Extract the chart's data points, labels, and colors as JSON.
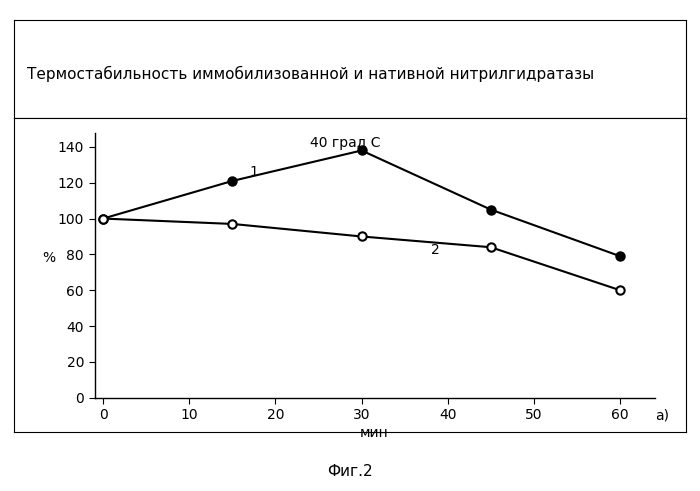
{
  "title": "Термостабильность иммобилизованной и нативной нитрилгидратазы",
  "xlabel": "мин",
  "ylabel": "% ",
  "annotation_40": "40 град С",
  "label_a": "а)",
  "fig_label": "Фиг.2",
  "series1": {
    "x": [
      0,
      15,
      30,
      45,
      60
    ],
    "y": [
      100,
      121,
      138,
      105,
      79
    ],
    "label": "1",
    "marker_fill": "black",
    "line_color": "black"
  },
  "series2": {
    "x": [
      0,
      15,
      30,
      45,
      60
    ],
    "y": [
      100,
      97,
      90,
      84,
      60
    ],
    "label": "2",
    "marker_fill": "white",
    "line_color": "black"
  },
  "ylim": [
    0,
    148
  ],
  "xlim": [
    -1,
    64
  ],
  "yticks": [
    0,
    20,
    40,
    60,
    80,
    100,
    120,
    140
  ],
  "xticks": [
    0,
    10,
    20,
    30,
    40,
    50,
    60
  ],
  "background_color": "#ffffff",
  "title_fontsize": 11,
  "axis_fontsize": 10,
  "tick_fontsize": 10
}
